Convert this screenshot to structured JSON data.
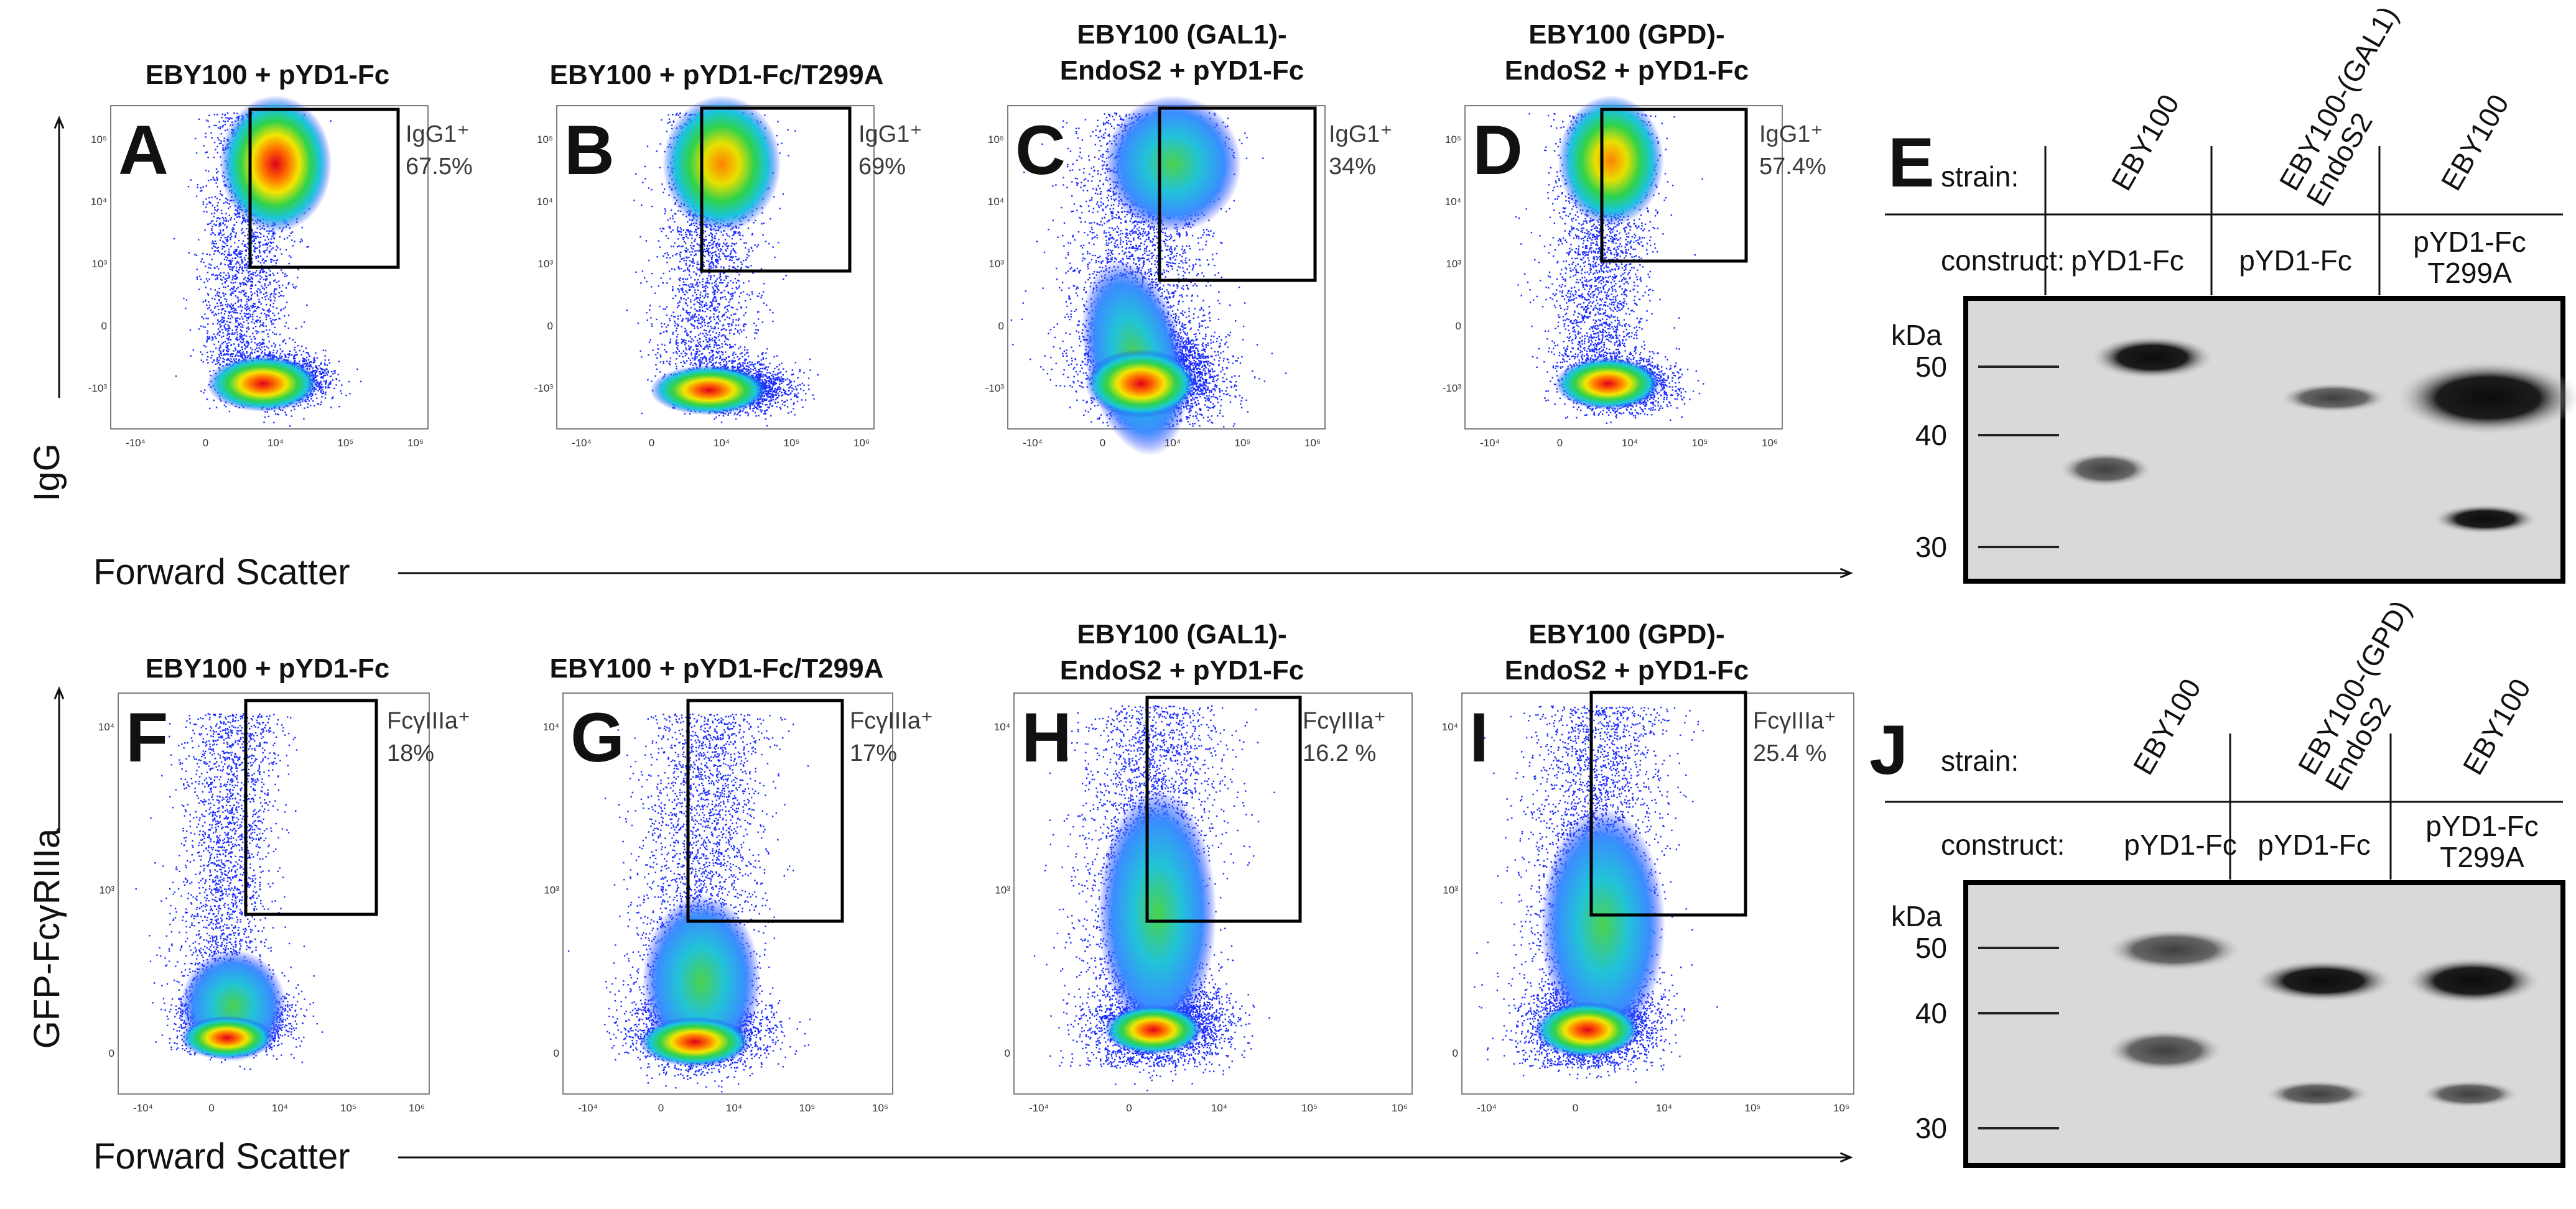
{
  "figure": {
    "colors": {
      "dot": "#1a2bff",
      "gate": "#000000",
      "text": "#111111",
      "blot_bg": "#d9d9d9",
      "band": "#161616"
    },
    "flow_panels": [
      {
        "letter": "A",
        "title_lines": [
          "EBY100 + pYD1-Fc"
        ],
        "gate_label": "IgG1⁺",
        "gate_value": "67.5%"
      },
      {
        "letter": "B",
        "title_lines": [
          "EBY100 + pYD1-Fc/T299A"
        ],
        "gate_label": "IgG1⁺",
        "gate_value": "69%"
      },
      {
        "letter": "C",
        "title_lines": [
          "EBY100 (GAL1)-",
          "EndoS2 + pYD1-Fc"
        ],
        "gate_label": "IgG1⁺",
        "gate_value": "34%"
      },
      {
        "letter": "D",
        "title_lines": [
          "EBY100 (GPD)-",
          "EndoS2 + pYD1-Fc"
        ],
        "gate_label": "IgG1⁺",
        "gate_value": "57.4%"
      },
      {
        "letter": "F",
        "title_lines": [
          "EBY100 + pYD1-Fc"
        ],
        "gate_label": "FcγIIIa⁺",
        "gate_value": "18%"
      },
      {
        "letter": "G",
        "title_lines": [
          "EBY100 + pYD1-Fc/T299A"
        ],
        "gate_label": "FcγIIIa⁺",
        "gate_value": "17%"
      },
      {
        "letter": "H",
        "title_lines": [
          "EBY100 (GAL1)-",
          "EndoS2 + pYD1-Fc"
        ],
        "gate_label": "FcγIIIa⁺",
        "gate_value": "16.2 %"
      },
      {
        "letter": "I",
        "title_lines": [
          "EBY100 (GPD)-",
          "EndoS2 + pYD1-Fc"
        ],
        "gate_label": "FcγIIIa⁺",
        "gate_value": "25.4 %"
      }
    ],
    "ticks_top": {
      "y": [
        "10⁵",
        "10⁴",
        "10³",
        "0",
        "-10³"
      ],
      "x": [
        "-10⁴",
        "0",
        "10⁴",
        "10⁵",
        "10⁶"
      ]
    },
    "ticks_bottom": {
      "y": [
        "10⁴",
        "10³",
        "0"
      ],
      "x": [
        "-10⁴",
        "0",
        "10⁴",
        "10⁵",
        "10⁶"
      ]
    },
    "axes": {
      "top_y": "IgG",
      "bottom_y": "GFP-FcγRIIIa",
      "x": "Forward Scatter"
    },
    "blots": [
      {
        "letter": "E",
        "row_strain": "strain:",
        "row_construct": "construct:",
        "strains": [
          "EBY100",
          "EBY100-(GAL1)\nEndoS2",
          "EBY100"
        ],
        "constructs": [
          "pYD1-Fc",
          "pYD1-Fc",
          "pYD1-Fc\nT299A"
        ],
        "kda": "kDa",
        "markers": [
          "50",
          "40",
          "30"
        ]
      },
      {
        "letter": "J",
        "row_strain": "strain:",
        "row_construct": "construct:",
        "strains": [
          "EBY100",
          "EBY100-(GPD)\nEndoS2",
          "EBY100"
        ],
        "constructs": [
          "pYD1-Fc",
          "pYD1-Fc",
          "pYD1-Fc\nT299A"
        ],
        "kda": "kDa",
        "markers": [
          "50",
          "40",
          "30"
        ]
      }
    ]
  }
}
